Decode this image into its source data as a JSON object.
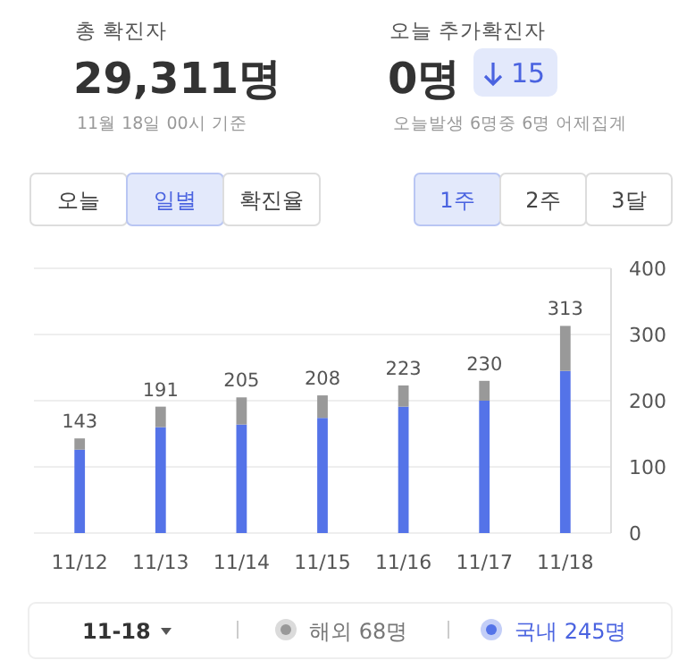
{
  "chart_data": {
    "type": "bar",
    "stacked": true,
    "categories": [
      "11/12",
      "11/13",
      "11/14",
      "11/15",
      "11/16",
      "11/17",
      "11/18"
    ],
    "series": [
      {
        "name": "국내",
        "color": "#5473e8",
        "values": [
          126,
          160,
          164,
          174,
          191,
          200,
          245
        ]
      },
      {
        "name": "해외",
        "color": "#999999",
        "values": [
          17,
          31,
          41,
          34,
          32,
          30,
          68
        ]
      }
    ],
    "totals": [
      "143",
      "191",
      "205",
      "208",
      "223",
      "230",
      "313"
    ],
    "ylim": [
      0,
      400
    ],
    "yticks": [
      0,
      100,
      200,
      300,
      400
    ],
    "grid": "y",
    "legend": "bottom",
    "annotations": [
      "총 확진자",
      "29,311명",
      "11월 18일 00시 기준",
      "오늘 추가확진자",
      "0명",
      "15",
      "오늘발생 6명중 6명 어제집계",
      "오늘",
      "일별",
      "확진율",
      "1주",
      "2주",
      "3달",
      "11-18",
      "68명",
      "245명"
    ]
  }
}
